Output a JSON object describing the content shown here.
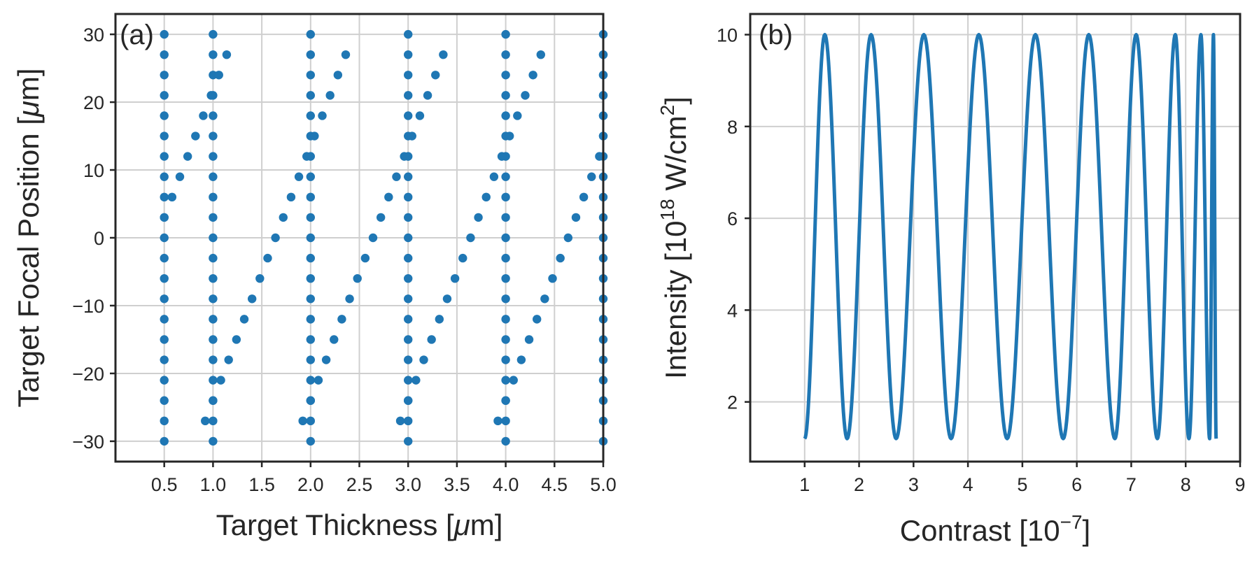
{
  "chart_data": [
    {
      "type": "scatter",
      "panel_label": "(a)",
      "xlabel": "Target Thickness [",
      "xlabel_mu": "μ",
      "xlabel_tail": "m]",
      "ylabel": "Target Focal Position [",
      "ylabel_mu": "μ",
      "ylabel_tail": "m]",
      "xlim": [
        0.0,
        5.0
      ],
      "ylim": [
        -33,
        33
      ],
      "xticks": [
        0.5,
        1.0,
        1.5,
        2.0,
        2.5,
        3.0,
        3.5,
        4.0,
        4.5,
        5.0
      ],
      "xtick_labels": [
        "0.5",
        "1.0",
        "1.5",
        "2.0",
        "2.5",
        "3.0",
        "3.5",
        "4.0",
        "4.5",
        "5.0"
      ],
      "yticks": [
        -30,
        -20,
        -10,
        0,
        10,
        20,
        30
      ],
      "ytick_labels": [
        "−30",
        "−20",
        "−10",
        "0",
        "10",
        "20",
        "30"
      ],
      "grid": true,
      "color": "#1f77b4",
      "focal_positions": [
        -30,
        -27,
        -24,
        -21,
        -18,
        -15,
        -12,
        -9,
        -6,
        -3,
        0,
        3,
        6,
        9,
        12,
        15,
        18,
        21,
        24,
        27,
        30
      ],
      "vertical_columns_x": [
        0.5,
        1.0,
        2.0,
        3.0,
        4.0,
        5.0
      ],
      "diagonal_points": [
        [
          0.5,
          3
        ],
        [
          0.58,
          6
        ],
        [
          0.66,
          9
        ],
        [
          0.74,
          12
        ],
        [
          0.82,
          15
        ],
        [
          0.9,
          18
        ],
        [
          0.98,
          21
        ],
        [
          1.06,
          24
        ],
        [
          1.14,
          27
        ],
        [
          0.92,
          -27
        ],
        [
          1.0,
          -24
        ],
        [
          1.08,
          -21
        ],
        [
          1.16,
          -18
        ],
        [
          1.24,
          -15
        ],
        [
          1.32,
          -12
        ],
        [
          1.4,
          -9
        ],
        [
          1.48,
          -6
        ],
        [
          1.56,
          -3
        ],
        [
          1.64,
          0
        ],
        [
          1.72,
          3
        ],
        [
          1.8,
          6
        ],
        [
          1.88,
          9
        ],
        [
          1.96,
          12
        ],
        [
          2.04,
          15
        ],
        [
          2.12,
          18
        ],
        [
          2.2,
          21
        ],
        [
          2.28,
          24
        ],
        [
          2.36,
          27
        ],
        [
          1.92,
          -27
        ],
        [
          2.0,
          -24
        ],
        [
          2.08,
          -21
        ],
        [
          2.16,
          -18
        ],
        [
          2.24,
          -15
        ],
        [
          2.32,
          -12
        ],
        [
          2.4,
          -9
        ],
        [
          2.48,
          -6
        ],
        [
          2.56,
          -3
        ],
        [
          2.64,
          0
        ],
        [
          2.72,
          3
        ],
        [
          2.8,
          6
        ],
        [
          2.88,
          9
        ],
        [
          2.96,
          12
        ],
        [
          3.04,
          15
        ],
        [
          3.12,
          18
        ],
        [
          3.2,
          21
        ],
        [
          3.28,
          24
        ],
        [
          3.36,
          27
        ],
        [
          2.92,
          -27
        ],
        [
          3.0,
          -24
        ],
        [
          3.08,
          -21
        ],
        [
          3.16,
          -18
        ],
        [
          3.24,
          -15
        ],
        [
          3.32,
          -12
        ],
        [
          3.4,
          -9
        ],
        [
          3.48,
          -6
        ],
        [
          3.56,
          -3
        ],
        [
          3.64,
          0
        ],
        [
          3.72,
          3
        ],
        [
          3.8,
          6
        ],
        [
          3.88,
          9
        ],
        [
          3.96,
          12
        ],
        [
          4.04,
          15
        ],
        [
          4.12,
          18
        ],
        [
          4.2,
          21
        ],
        [
          4.28,
          24
        ],
        [
          4.36,
          27
        ],
        [
          3.92,
          -27
        ],
        [
          4.0,
          -24
        ],
        [
          4.08,
          -21
        ],
        [
          4.16,
          -18
        ],
        [
          4.24,
          -15
        ],
        [
          4.32,
          -12
        ],
        [
          4.4,
          -9
        ],
        [
          4.48,
          -6
        ],
        [
          4.56,
          -3
        ],
        [
          4.64,
          0
        ],
        [
          4.72,
          3
        ],
        [
          4.8,
          6
        ],
        [
          4.88,
          9
        ],
        [
          4.96,
          12
        ],
        [
          5.0,
          15
        ],
        [
          5.0,
          18
        ],
        [
          5.0,
          21
        ],
        [
          5.0,
          24
        ],
        [
          5.0,
          27
        ]
      ]
    },
    {
      "type": "line",
      "panel_label": "(b)",
      "xlabel": "Contrast [10",
      "xlabel_sup": "−7",
      "xlabel_tail": "]",
      "ylabel": "Intensity [10",
      "ylabel_sup": "18",
      "ylabel_mid": " W/cm",
      "ylabel_sup2": "2",
      "ylabel_tail": "]",
      "xlim": [
        0.0,
        9.0
      ],
      "ylim": [
        0.7,
        10.45
      ],
      "xticks": [
        1,
        2,
        3,
        4,
        5,
        6,
        7,
        8,
        9
      ],
      "xtick_labels": [
        "1",
        "2",
        "3",
        "4",
        "5",
        "6",
        "7",
        "8",
        "9"
      ],
      "yticks": [
        2,
        4,
        6,
        8,
        10
      ],
      "ytick_labels": [
        "2",
        "4",
        "6",
        "8",
        "10"
      ],
      "grid": true,
      "color": "#1f77b4",
      "peaks_x": [
        1.37,
        2.22,
        3.19,
        4.2,
        5.24,
        6.22,
        7.09,
        7.81,
        8.28,
        8.51
      ],
      "troughs_x": [
        1.0,
        1.78,
        2.68,
        3.69,
        4.72,
        5.75,
        6.7,
        7.48,
        8.06,
        8.44,
        8.56
      ],
      "y_min": 1.2,
      "y_max": 10.0
    }
  ]
}
